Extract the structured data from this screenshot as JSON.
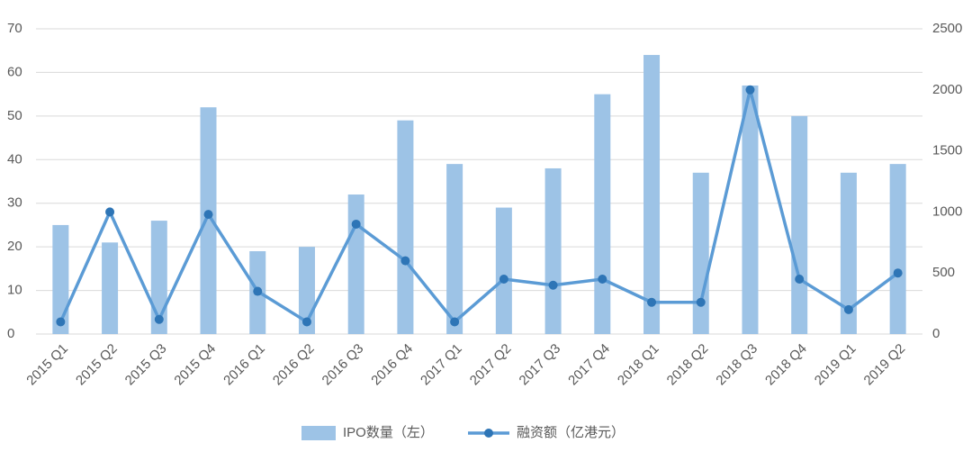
{
  "chart_data": {
    "type": "bar_line",
    "categories": [
      "2015 Q1",
      "2015 Q2",
      "2015 Q3",
      "2015 Q4",
      "2016 Q1",
      "2016 Q2",
      "2016 Q3",
      "2016 Q4",
      "2017 Q1",
      "2017 Q2",
      "2017 Q3",
      "2017 Q4",
      "2018 Q1",
      "2018 Q2",
      "2018 Q3",
      "2018 Q4",
      "2019 Q1",
      "2019 Q2"
    ],
    "series": [
      {
        "name": "IPO数量（左）",
        "type": "bar",
        "color": "#9dc3e6",
        "values": [
          25,
          21,
          26,
          52,
          19,
          20,
          32,
          49,
          39,
          29,
          38,
          55,
          64,
          37,
          57,
          50,
          37,
          39
        ]
      },
      {
        "name": "融资额（亿港元）",
        "type": "line",
        "axis": "y2",
        "color": "#5b9bd5",
        "values": [
          100,
          1000,
          120,
          980,
          350,
          100,
          900,
          600,
          100,
          450,
          400,
          450,
          260,
          260,
          2000,
          450,
          200,
          500
        ]
      }
    ],
    "ylim": [
      0,
      70
    ],
    "yticks": [
      0,
      10,
      20,
      30,
      40,
      50,
      60,
      70
    ],
    "y2lim": [
      0,
      2500
    ],
    "y2ticks": [
      0,
      500,
      1000,
      1500,
      2000,
      2500
    ],
    "grid": true,
    "legend": "bottom"
  }
}
